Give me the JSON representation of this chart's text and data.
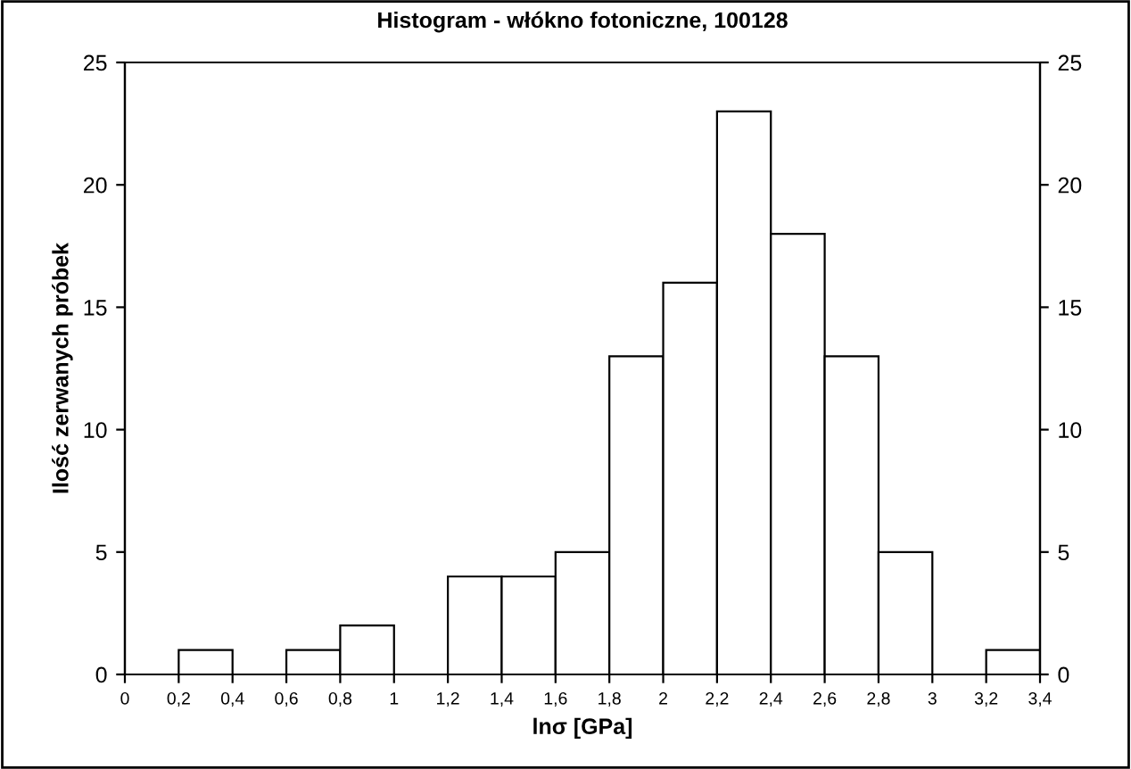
{
  "chart_data": {
    "type": "histogram",
    "title": "Histogram - włókno fotoniczne, 100128",
    "xlabel": "lnσ [GPa]",
    "ylabel": "Ilość zerwanych próbek",
    "bins": [
      0,
      0.2,
      0.4,
      0.6,
      0.8,
      1,
      1.2,
      1.4,
      1.6,
      1.8,
      2,
      2.2,
      2.4,
      2.6,
      2.8,
      3,
      3.2,
      3.4
    ],
    "values": [
      0,
      1,
      0,
      1,
      2,
      0,
      4,
      4,
      5,
      13,
      16,
      23,
      18,
      13,
      5,
      0,
      1
    ],
    "color": "#ffffff",
    "xlim": [
      0,
      3.4
    ],
    "xticks": [
      0,
      {
        "value": 0.2,
        "label": "0,2"
      },
      {
        "value": 0.4,
        "label": "0,4"
      },
      {
        "value": 0.6,
        "label": "0,6"
      },
      {
        "value": 0.8,
        "label": "0,8"
      },
      1,
      {
        "value": 1.2,
        "label": "1,2"
      },
      {
        "value": 1.4,
        "label": "1,4"
      },
      {
        "value": 1.6,
        "label": "1,6"
      },
      {
        "value": 1.8,
        "label": "1,8"
      },
      2,
      {
        "value": 2.2,
        "label": "2,2"
      },
      {
        "value": 2.4,
        "label": "2,4"
      },
      {
        "value": 2.6,
        "label": "2,6"
      },
      {
        "value": 2.8,
        "label": "2,8"
      },
      3,
      {
        "value": 3.2,
        "label": "3,2"
      },
      {
        "value": 3.4,
        "label": "3,4"
      }
    ],
    "ylim": [
      0,
      25
    ],
    "yticks": [
      0,
      5,
      10,
      15,
      20,
      25
    ],
    "y2lim": [
      0,
      25
    ],
    "y2ticks": [
      0,
      5,
      10,
      15,
      20,
      25
    ],
    "grid": false
  }
}
